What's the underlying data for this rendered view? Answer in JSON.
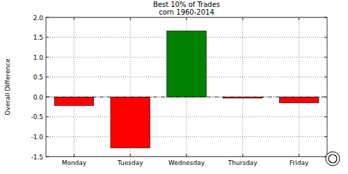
{
  "chart_data": {
    "type": "bar",
    "title": "Best 10% of Trades",
    "subtitle": "corn 1960-2014",
    "y_label": "Overall Difference",
    "categories": [
      "Monday",
      "Tuesday",
      "Wednesday",
      "Thursday",
      "Friday"
    ],
    "values": [
      -0.22,
      -1.28,
      1.66,
      -0.03,
      -0.15
    ],
    "colors": [
      "#ff0000",
      "#ff0000",
      "#008000",
      "#ff0000",
      "#ff0000"
    ],
    "ylim": [
      -1.5,
      2.0
    ],
    "yticks": [
      -1.5,
      {
        "value": -1.0,
        "label": "-1.0"
      },
      -0.5,
      {
        "value": 0,
        "label": "0.0"
      },
      0.5,
      {
        "value": 1.0,
        "label": "1.0"
      },
      1.5,
      {
        "value": 2.0,
        "label": "2.0"
      }
    ],
    "grid": true
  }
}
